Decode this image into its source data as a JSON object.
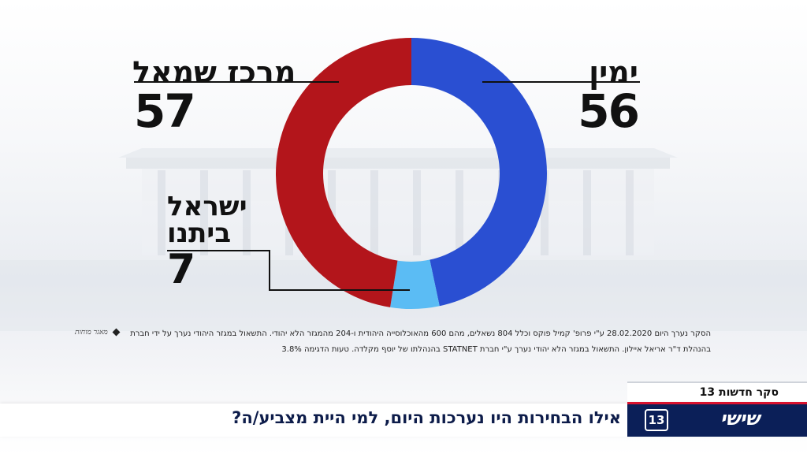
{
  "chart_data": {
    "type": "pie",
    "style": "donut",
    "categories": [
      "ימין",
      "ישראל ביתנו",
      "מרכז שמאל"
    ],
    "values": [
      56,
      7,
      57
    ],
    "colors": [
      "#2a4fd2",
      "#5bbcf4",
      "#b3151b"
    ],
    "labels": [
      {
        "name_lines": [
          "ימין"
        ],
        "value": "56"
      },
      {
        "name_lines": [
          "ישראל",
          "ביתנו"
        ],
        "value": "7"
      },
      {
        "name_lines": [
          "מרכז שמאל"
        ],
        "value": "57"
      }
    ]
  },
  "footnote": {
    "line1": "הסקר נערך היום 28.02.2020 ע\"י פרופ' קמיל פוקס וכלל 804 נשאלים, מהם 600 מהאוכלוסייה היהודית ו-204 מהמגזר הלא יהודי. התשאול במגזר היהודי נערך על ידי חברת",
    "line2": "בהנהלת ד\"ר אריאל איילון. התשאול במגזר הלא יהודי נערך ע\"י חברת STATNET בהנהלתו של יוסף מקלדה. טעות הדגימה 3.8%",
    "credit": "מאגר מוחות"
  },
  "banner": {
    "poll_tag": "סקר חדשות 13",
    "question": "אילו הבחירות היו נערכות היום, למי היית מצביע/ה?",
    "brand_name": "שישי",
    "brand_logo": "13",
    "brand_logo_icon": "channel-13-logo-icon"
  }
}
